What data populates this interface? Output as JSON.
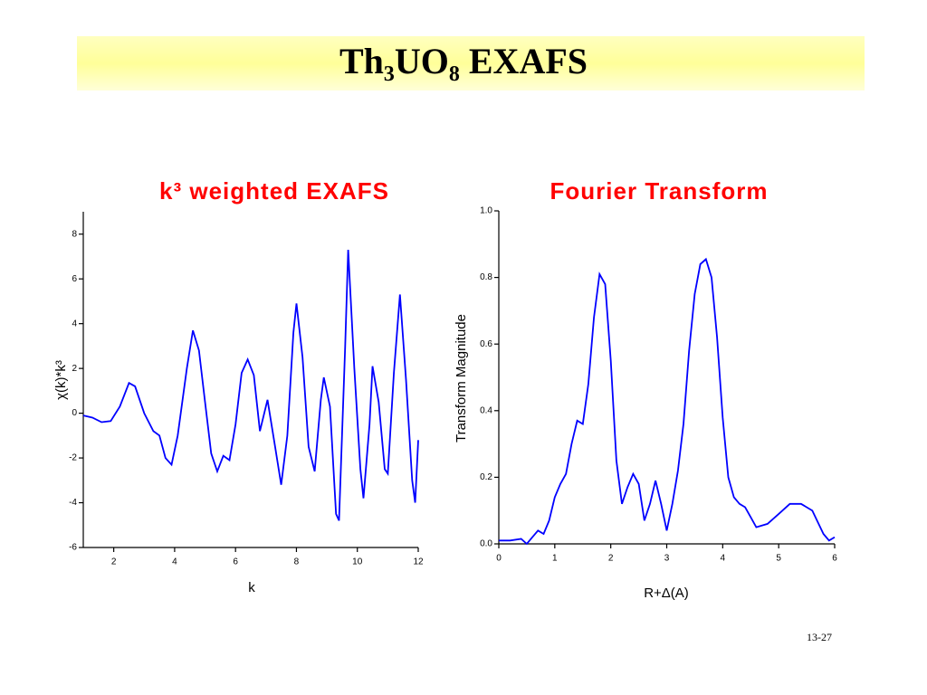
{
  "slide": {
    "title": "Th₃UO₈ EXAFS",
    "page_number": "13-27"
  },
  "chart_data": [
    {
      "type": "line",
      "title": "k³ weighted EXAFS",
      "x_label": "k",
      "y_label": "χ(k)*k³",
      "xlim": [
        1,
        12
      ],
      "ylim": [
        -6,
        9
      ],
      "xticks": [
        2,
        4,
        6,
        8,
        10,
        12
      ],
      "yticks": [
        -6,
        -4,
        -2,
        0,
        2,
        4,
        6,
        8
      ],
      "grid": false,
      "series": [
        {
          "name": "χ(k)*k³",
          "color": "#0000ff",
          "x": [
            1.0,
            1.3,
            1.6,
            1.9,
            2.2,
            2.5,
            2.7,
            3.0,
            3.3,
            3.5,
            3.7,
            3.9,
            4.1,
            4.4,
            4.6,
            4.8,
            5.0,
            5.2,
            5.4,
            5.6,
            5.8,
            6.0,
            6.2,
            6.4,
            6.6,
            6.8,
            7.05,
            7.3,
            7.5,
            7.7,
            7.9,
            8.0,
            8.2,
            8.4,
            8.6,
            8.8,
            8.9,
            9.1,
            9.3,
            9.4,
            9.6,
            9.7,
            9.9,
            10.1,
            10.2,
            10.4,
            10.5,
            10.7,
            10.9,
            11.0,
            11.2,
            11.4,
            11.6,
            11.8,
            11.9,
            12.0
          ],
          "values": [
            -0.1,
            -0.2,
            -0.4,
            -0.35,
            0.3,
            1.35,
            1.2,
            0,
            -0.8,
            -1.0,
            -2.0,
            -2.3,
            -1.0,
            2.0,
            3.7,
            2.8,
            0.5,
            -1.8,
            -2.6,
            -1.9,
            -2.1,
            -0.5,
            1.8,
            2.4,
            1.7,
            -0.8,
            0.6,
            -1.5,
            -3.2,
            -1.0,
            3.6,
            4.9,
            2.5,
            -1.5,
            -2.6,
            0.6,
            1.6,
            0.3,
            -4.5,
            -4.8,
            3.0,
            7.3,
            2.0,
            -2.5,
            -3.8,
            -0.5,
            2.1,
            0.5,
            -2.5,
            -2.7,
            1.8,
            5.3,
            1.5,
            -3.0,
            -4.0,
            -1.2
          ]
        }
      ]
    },
    {
      "type": "line",
      "title": "Fourier Transform",
      "x_label": "R+Δ(A)",
      "y_label": "Transform Magnitude",
      "xlim": [
        0,
        6
      ],
      "ylim": [
        0,
        1
      ],
      "xticks": [
        0,
        1,
        2,
        3,
        4,
        5,
        6
      ],
      "yticks": [
        {
          "value": 0,
          "label": "0.0"
        },
        0.2,
        0.4,
        0.6,
        0.8,
        {
          "value": 1,
          "label": "1.0"
        }
      ],
      "grid": false,
      "series": [
        {
          "name": "Transform Magnitude",
          "color": "#0000ff",
          "x": [
            0,
            0.2,
            0.4,
            0.5,
            0.6,
            0.7,
            0.8,
            0.9,
            1.0,
            1.1,
            1.2,
            1.3,
            1.4,
            1.5,
            1.6,
            1.7,
            1.8,
            1.9,
            2.0,
            2.1,
            2.2,
            2.3,
            2.4,
            2.5,
            2.6,
            2.7,
            2.8,
            2.9,
            3.0,
            3.1,
            3.2,
            3.3,
            3.4,
            3.5,
            3.6,
            3.7,
            3.8,
            3.9,
            4.0,
            4.1,
            4.2,
            4.3,
            4.4,
            4.5,
            4.6,
            4.8,
            5.0,
            5.2,
            5.4,
            5.6,
            5.8,
            5.9,
            6.0
          ],
          "values": [
            0.01,
            0.01,
            0.015,
            0.0,
            0.02,
            0.04,
            0.03,
            0.07,
            0.14,
            0.18,
            0.21,
            0.3,
            0.37,
            0.36,
            0.48,
            0.68,
            0.81,
            0.78,
            0.55,
            0.25,
            0.12,
            0.17,
            0.21,
            0.18,
            0.07,
            0.12,
            0.19,
            0.12,
            0.04,
            0.12,
            0.22,
            0.36,
            0.58,
            0.75,
            0.84,
            0.855,
            0.8,
            0.62,
            0.38,
            0.2,
            0.14,
            0.12,
            0.11,
            0.08,
            0.05,
            0.06,
            0.09,
            0.12,
            0.12,
            0.1,
            0.03,
            0.01,
            0.02
          ]
        }
      ]
    }
  ]
}
